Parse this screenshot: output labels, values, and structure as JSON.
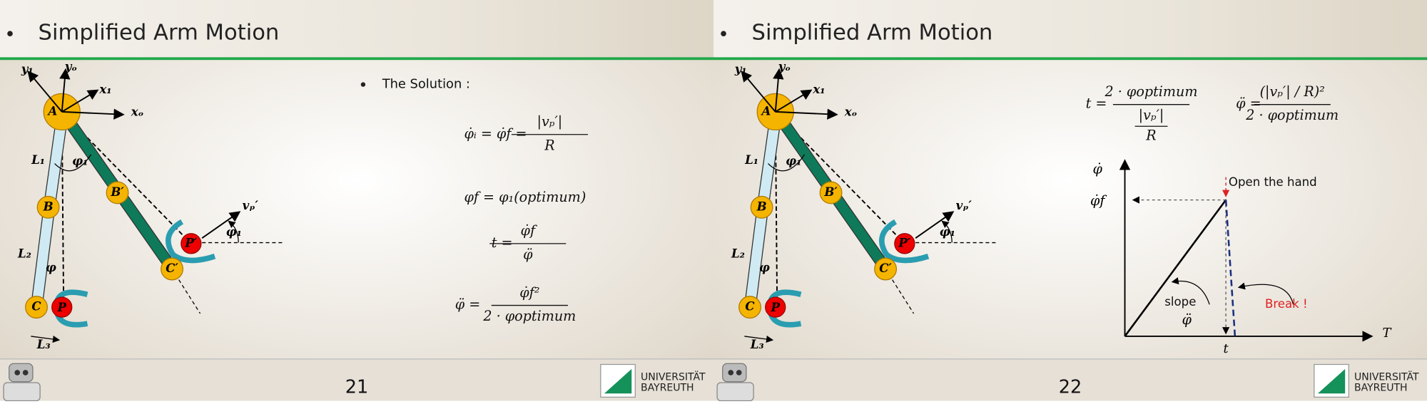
{
  "slides": [
    {
      "title": "Simplified Arm Motion",
      "diagram": {
        "y1": "y₁",
        "yo": "yₒ",
        "x1": "x₁",
        "xo": "xₒ",
        "A": "A",
        "B": "B",
        "C": "C",
        "P": "P",
        "B_prime": "B′",
        "C_prime": "C′",
        "P_prime": "P′",
        "L1": "L₁",
        "L2": "L₂",
        "L3": "L₃",
        "phi1_elbow": "φ₁",
        "phi": "φ",
        "phi1_out": "φ₁",
        "v": "vₚ′"
      },
      "bullet": "The Solution :",
      "formulas": [
        {
          "lhs": "φ̇ᵢ = φ̇f =",
          "num": "|vₚ′|",
          "den": "R"
        },
        {
          "lhs": "φf = φ₁(optimum)"
        },
        {
          "lhs": "t =",
          "num": "φ̇f",
          "den": "φ̈"
        },
        {
          "lhs": "φ̈ =",
          "num": "φ̇f²",
          "den": "2 · φoptimum"
        }
      ],
      "page_number": "21",
      "logo": {
        "line1": "UNIVERSITÄT",
        "line2": "BAYREUTH"
      }
    },
    {
      "title": "Simplified Arm Motion",
      "diagram": {
        "y1": "y₁",
        "yo": "yₒ",
        "x1": "x₁",
        "xo": "xₒ",
        "A": "A",
        "B": "B",
        "C": "C",
        "P": "P",
        "B_prime": "B′",
        "C_prime": "C′",
        "P_prime": "P′",
        "L1": "L₁",
        "L2": "L₂",
        "L3": "L₃",
        "phi1_elbow": "φ₁",
        "phi": "φ",
        "phi1_out": "φ₁",
        "v": "vₚ′"
      },
      "formulas": [
        {
          "lhs": "t =",
          "num": "2 · φoptimum",
          "den": "|vₚ′|",
          "subden": "R"
        },
        {
          "lhs": "φ̈ =",
          "num": "(|vₚ′| / R)²",
          "den": "2 · φoptimum"
        }
      ],
      "graph": {
        "y_axis": "φ̇",
        "phi_f": "φ̇f",
        "open": "Open the hand",
        "slope": "slope",
        "slope_sym": "φ̈",
        "break": "Break !",
        "x_axis": "T",
        "t": "t"
      },
      "page_number": "22",
      "logo": {
        "line1": "UNIVERSITÄT",
        "line2": "BAYREUTH"
      }
    }
  ]
}
